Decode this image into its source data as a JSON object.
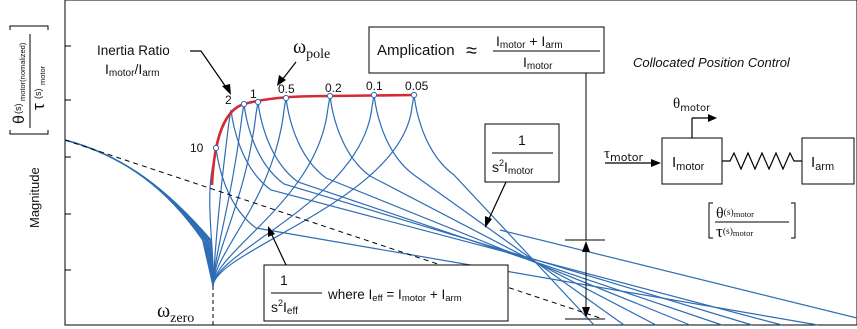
{
  "colors": {
    "curve": "#2f6db5",
    "highlight": "#d42a35",
    "axis": "#000000",
    "dash": "#000000"
  },
  "ylabel": {
    "word": "Magnitude",
    "num_theta": "θ",
    "num_s": "(s)",
    "num_sub": "motor(nomalized)",
    "den_tau": "τ",
    "den_s": "(s)",
    "den_sub": "motor"
  },
  "inertia_label": {
    "line1": "Inertia Ratio",
    "imotor": "I",
    "imotor_sub": "motor",
    "slash": "/",
    "iarm": "I",
    "iarm_sub": "arm"
  },
  "omega_pole": {
    "omega": "ω",
    "sub": "pole"
  },
  "omega_zero": {
    "omega": "ω",
    "sub": "zero"
  },
  "ratio_labels": [
    "10",
    "2",
    "1",
    "0.5",
    "0.2",
    "0.1",
    "0.05"
  ],
  "amplication": {
    "word": "Amplication",
    "approx": "≈",
    "num1": "I",
    "num1_sub": "motor",
    "plus": " + ",
    "num2": "I",
    "num2_sub": "arm",
    "den": "I",
    "den_sub": "motor"
  },
  "box_motor": {
    "num": "1",
    "s2": "s",
    "sq": "2",
    "i": "I",
    "sub": "motor"
  },
  "box_eff": {
    "num": "1",
    "s2": "s",
    "sq": "2",
    "i": "I",
    "sub": "eff",
    "where": "where I",
    "where_sub": "eff",
    "eq": " = I",
    "m_sub": "motor",
    "plus": " + I",
    "a_sub": "arm"
  },
  "control": {
    "title": "Collocated Position Control",
    "theta": "θ",
    "theta_sub": "motor",
    "tau": "τ",
    "tau_sub": "motor",
    "m1": "I",
    "m1_sub": "motor",
    "m2": "I",
    "m2_sub": "arm",
    "tf_num": "θ",
    "tf_num_s": "(s)",
    "tf_num_sub": "motor",
    "tf_den": "τ",
    "tf_den_s": "(s)",
    "tf_den_sub": "motor"
  }
}
